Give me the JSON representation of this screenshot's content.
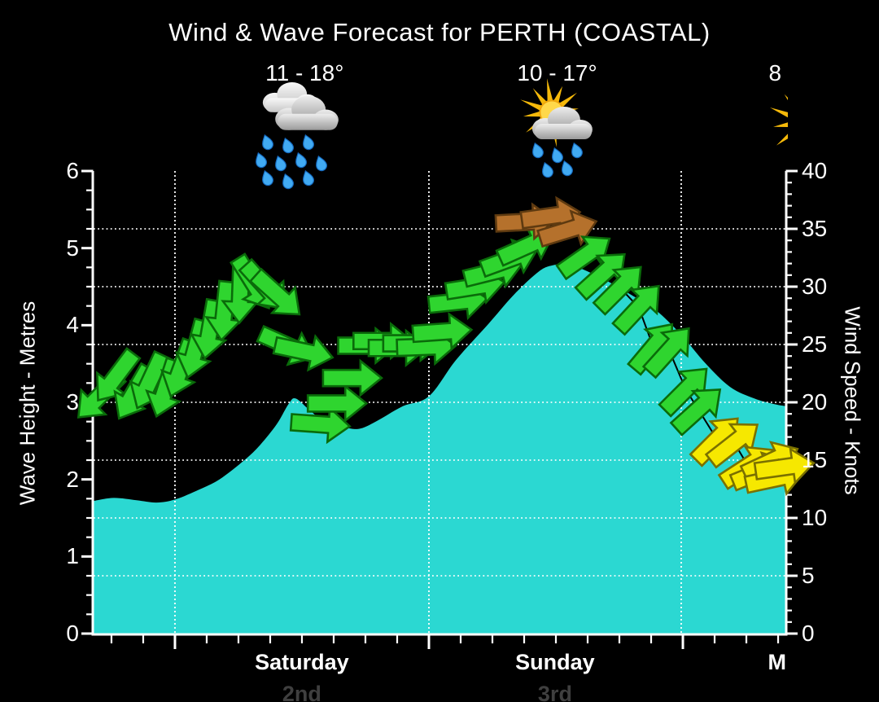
{
  "title": "Wind & Wave Forecast for PERTH (COASTAL)",
  "header": {
    "days": [
      {
        "temp_range": "11 - 18°",
        "icon": "rain-showers-icon",
        "temp_center_f": 0.305,
        "icon_center_f": 0.3
      },
      {
        "temp_range": "10 - 17°",
        "icon": "sun-cloud-rain-icon",
        "temp_center_f": 0.67,
        "icon_center_f": 0.667
      },
      {
        "temp_range": "8",
        "icon": "sun-icon",
        "temp_center_f": 0.985,
        "icon_center_f": 1.03
      }
    ]
  },
  "chart_data": {
    "type": "area",
    "title": "Wind & Wave Forecast for PERTH (COASTAL)",
    "axes": {
      "left": {
        "title": "Wave Height - Metres",
        "min": 0,
        "max": 6,
        "major_ticks": [
          "0",
          "1",
          "2",
          "3",
          "4",
          "5",
          "6"
        ],
        "minor_step": 0.25
      },
      "right": {
        "title": "Wind Speed - Knots",
        "min": 0,
        "max": 40,
        "major_ticks": [
          "0",
          "5",
          "10",
          "15",
          "20",
          "25",
          "30",
          "35",
          "40"
        ],
        "minor_step": 1,
        "dotted_gridlines_at_knots": [
          5,
          10,
          15,
          20,
          25,
          30,
          35
        ]
      },
      "bottom": {
        "days": [
          {
            "label": "Saturday",
            "date": "2nd",
            "center_f": 0.301
          },
          {
            "label": "Sunday",
            "date": "3rd",
            "center_f": 0.667
          },
          {
            "label": "M",
            "date": "",
            "center_f": 0.988
          }
        ],
        "day_boundary_f": [
          0.1176,
          0.4847,
          0.8494
        ],
        "minor_ticks_per_day": 8
      }
    },
    "wave_height_m": {
      "name": "Wave Height",
      "units": "metres",
      "points_f_m": [
        [
          0.0,
          1.72
        ],
        [
          0.029,
          1.76
        ],
        [
          0.062,
          1.73
        ],
        [
          0.091,
          1.7
        ],
        [
          0.118,
          1.74
        ],
        [
          0.153,
          1.87
        ],
        [
          0.182,
          2.0
        ],
        [
          0.218,
          2.25
        ],
        [
          0.241,
          2.45
        ],
        [
          0.265,
          2.72
        ],
        [
          0.282,
          2.98
        ],
        [
          0.292,
          3.05
        ],
        [
          0.312,
          2.9
        ],
        [
          0.335,
          2.74
        ],
        [
          0.365,
          2.67
        ],
        [
          0.386,
          2.66
        ],
        [
          0.412,
          2.77
        ],
        [
          0.447,
          2.95
        ],
        [
          0.485,
          3.08
        ],
        [
          0.524,
          3.55
        ],
        [
          0.571,
          4.02
        ],
        [
          0.608,
          4.4
        ],
        [
          0.644,
          4.7
        ],
        [
          0.665,
          4.78
        ],
        [
          0.685,
          4.79
        ],
        [
          0.706,
          4.73
        ],
        [
          0.741,
          4.58
        ],
        [
          0.776,
          4.4
        ],
        [
          0.812,
          4.2
        ],
        [
          0.849,
          3.88
        ],
        [
          0.885,
          3.5
        ],
        [
          0.92,
          3.2
        ],
        [
          0.955,
          3.05
        ],
        [
          0.982,
          2.98
        ],
        [
          1.0,
          2.95
        ]
      ]
    },
    "wind": {
      "name": "Wind Speed & Direction",
      "units": "knots",
      "arrow_format": [
        "x_fraction",
        "knots",
        "rotation_deg_cw_from_east",
        "color_key"
      ],
      "arrows": [
        [
          0.008,
          20.5,
          135,
          "green"
        ],
        [
          0.032,
          22.2,
          127,
          "green"
        ],
        [
          0.058,
          20.8,
          120,
          "green"
        ],
        [
          0.081,
          21.8,
          115,
          "green"
        ],
        [
          0.104,
          21.2,
          108,
          "green"
        ],
        [
          0.126,
          22.9,
          110,
          "green"
        ],
        [
          0.147,
          24.6,
          105,
          "green"
        ],
        [
          0.168,
          26.3,
          100,
          "green"
        ],
        [
          0.189,
          27.9,
          96,
          "green"
        ],
        [
          0.212,
          29.4,
          92,
          "green"
        ],
        [
          0.231,
          30.3,
          58,
          "green"
        ],
        [
          0.248,
          30.0,
          48,
          "green"
        ],
        [
          0.266,
          29.3,
          42,
          "green"
        ],
        [
          0.28,
          24.9,
          24,
          "green"
        ],
        [
          0.304,
          24.4,
          12,
          "green"
        ],
        [
          0.328,
          18.1,
          4,
          "green"
        ],
        [
          0.352,
          19.9,
          0,
          "green"
        ],
        [
          0.374,
          22.1,
          0,
          "green"
        ],
        [
          0.396,
          24.9,
          0,
          "green"
        ],
        [
          0.418,
          25.3,
          0,
          "green"
        ],
        [
          0.44,
          24.7,
          0,
          "green"
        ],
        [
          0.461,
          25.1,
          0,
          "green"
        ],
        [
          0.481,
          24.8,
          -2,
          "green"
        ],
        [
          0.504,
          26.1,
          -4,
          "green"
        ],
        [
          0.527,
          28.7,
          -6,
          "green"
        ],
        [
          0.552,
          30.0,
          -9,
          "green"
        ],
        [
          0.578,
          31.3,
          -14,
          "green"
        ],
        [
          0.602,
          32.4,
          -20,
          "green"
        ],
        [
          0.626,
          33.5,
          -24,
          "green"
        ],
        [
          0.624,
          35.6,
          -3,
          "brown"
        ],
        [
          0.661,
          36.1,
          -8,
          "brown"
        ],
        [
          0.686,
          34.9,
          -17,
          "brown"
        ],
        [
          0.711,
          32.7,
          -35,
          "green"
        ],
        [
          0.736,
          31.1,
          -42,
          "green"
        ],
        [
          0.761,
          29.9,
          -45,
          "green"
        ],
        [
          0.788,
          28.2,
          -47,
          "green"
        ],
        [
          0.809,
          24.8,
          -50,
          "green"
        ],
        [
          0.832,
          24.5,
          -48,
          "green"
        ],
        [
          0.856,
          21.1,
          -45,
          "green"
        ],
        [
          0.874,
          19.4,
          -42,
          "green"
        ],
        [
          0.901,
          16.8,
          -45,
          "yellow"
        ],
        [
          0.926,
          16.5,
          -38,
          "yellow"
        ],
        [
          0.946,
          14.5,
          -33,
          "yellow"
        ],
        [
          0.964,
          14.0,
          -22,
          "yellow"
        ],
        [
          0.979,
          14.9,
          -25,
          "yellow"
        ],
        [
          0.985,
          13.4,
          -12,
          "yellow"
        ],
        [
          0.999,
          14.4,
          -8,
          "yellow"
        ]
      ]
    },
    "arrow_colors": {
      "green": "#2FD52F",
      "brown": "#B5712C",
      "yellow": "#F6E800"
    }
  },
  "colors": {
    "background": "#000000",
    "wave_fill": "#2BD8D2",
    "grid": "#FFFFFF",
    "text": "#FFFFFF",
    "date_text": "#3F3F3F"
  }
}
